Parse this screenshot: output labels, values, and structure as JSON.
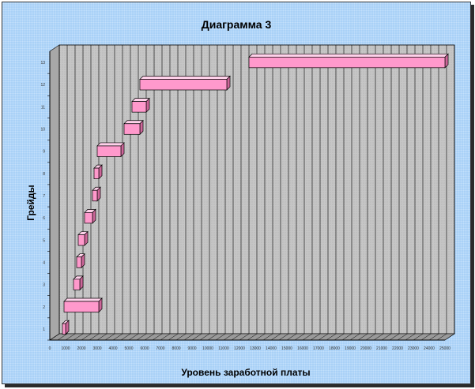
{
  "chart_data": {
    "type": "bar",
    "orientation": "horizontal-floating-3d",
    "title": "Диаграмма 3",
    "xlabel": "Уровень заработной платы",
    "ylabel": "Грейды",
    "categories": [
      "1",
      "2",
      "3",
      "4",
      "5",
      "6",
      "7",
      "8",
      "9",
      "10",
      "11",
      "12",
      "13"
    ],
    "x_ticks": [
      "0",
      "1000",
      "2000",
      "3000",
      "4000",
      "5000",
      "6000",
      "7000",
      "8000",
      "9000",
      "10000",
      "11000",
      "12000",
      "13000",
      "14000",
      "15000",
      "16000",
      "17000",
      "18000",
      "19000",
      "20000",
      "21000",
      "22000",
      "23000",
      "24000",
      "25000"
    ],
    "xlim": [
      0,
      25000
    ],
    "series": [
      {
        "start": [
          800,
          900,
          1500,
          1700,
          1800,
          2200,
          2700,
          2800,
          3000,
          4700,
          5200,
          5700,
          12600
        ],
        "end": [
          1000,
          3100,
          1900,
          2000,
          2200,
          2700,
          3000,
          3100,
          4500,
          5700,
          6100,
          11200,
          25000
        ]
      }
    ],
    "grid": true,
    "legend": "none",
    "colors": {
      "bar_front": "#ff99cc",
      "bar_top": "#ffd1ea",
      "bar_side": "#cc6699",
      "background": "#a9d1f7",
      "plot_wall": "#c8c8c8"
    }
  }
}
